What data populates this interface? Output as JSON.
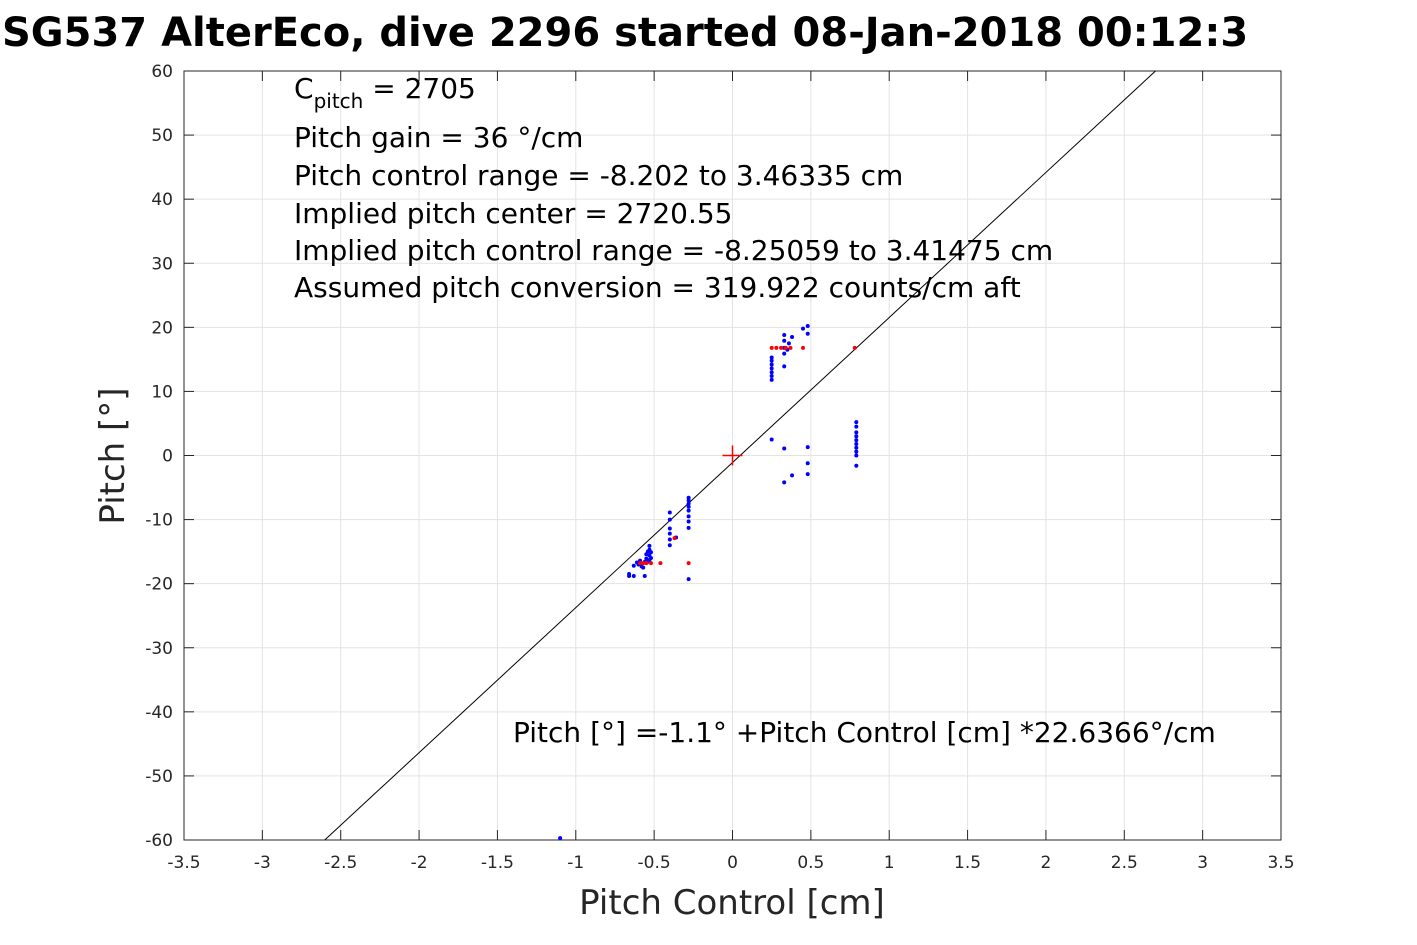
{
  "chart_data": {
    "type": "scatter",
    "title": "SG537 AlterEco, dive 2296 started 08-Jan-2018 00:12:3",
    "xlabel": "Pitch Control [cm]",
    "ylabel": "Pitch [°]",
    "xlim": [
      -3.5,
      3.5
    ],
    "ylim": [
      -60,
      60
    ],
    "xticks": [
      "-3.5",
      "-3",
      "-2.5",
      "-2",
      "-1.5",
      "-1",
      "-0.5",
      "0",
      "0.5",
      "1",
      "1.5",
      "2",
      "2.5",
      "3",
      "3.5"
    ],
    "yticks": [
      "60",
      "50",
      "40",
      "30",
      "20",
      "10",
      "0",
      "-10",
      "-20",
      "-30",
      "-40",
      "-50",
      "-60"
    ],
    "grid": true,
    "annotations": {
      "c_pitch_base": "C",
      "c_pitch_sub": "pitch",
      "c_pitch_value": " = 2705",
      "pitch_gain": "Pitch gain = 36 °/cm",
      "pitch_control_range": "Pitch control range = -8.202 to 3.46335 cm",
      "implied_center": "Implied pitch center = 2720.55",
      "implied_range": "Implied pitch control range = -8.25059 to 3.41475 cm",
      "assumed_conversion": "Assumed pitch conversion = 319.922 counts/cm aft",
      "fit_equation": "Pitch [°] =-1.1° +Pitch Control [cm] *22.6366°/cm"
    },
    "fit_line": {
      "intercept": -1.1,
      "slope": 22.6366,
      "color": "#000000"
    },
    "center_marker": {
      "x": 0,
      "y": 0,
      "color": "#ff0000"
    },
    "series": [
      {
        "color": "#0000ff",
        "points": [
          [
            -0.66,
            -18.5
          ],
          [
            -0.66,
            -18.8
          ],
          [
            -0.63,
            -17.2
          ],
          [
            -0.63,
            -18.8
          ],
          [
            -0.61,
            -16.7
          ],
          [
            -0.6,
            -17.0
          ],
          [
            -0.59,
            -16.4
          ],
          [
            -0.58,
            -17.3
          ],
          [
            -0.57,
            -17.5
          ],
          [
            -0.56,
            -16.6
          ],
          [
            -0.56,
            -18.8
          ],
          [
            -0.55,
            -15.4
          ],
          [
            -0.55,
            -16.1
          ],
          [
            -0.54,
            -15.0
          ],
          [
            -0.54,
            -16.6
          ],
          [
            -0.53,
            -14.1
          ],
          [
            -0.53,
            -14.7
          ],
          [
            -0.53,
            -15.6
          ],
          [
            -0.53,
            -16.3
          ],
          [
            -0.52,
            -15.1
          ],
          [
            -0.52,
            -16.0
          ],
          [
            -0.4,
            -8.9
          ],
          [
            -0.4,
            -10.0
          ],
          [
            -0.4,
            -11.4
          ],
          [
            -0.4,
            -12.2
          ],
          [
            -0.4,
            -13.1
          ],
          [
            -0.4,
            -14.0
          ],
          [
            -0.36,
            -12.8
          ],
          [
            -0.28,
            -6.6
          ],
          [
            -0.28,
            -7.0
          ],
          [
            -0.28,
            -7.5
          ],
          [
            -0.28,
            -8.0
          ],
          [
            -0.28,
            -8.6
          ],
          [
            -0.28,
            -9.5
          ],
          [
            -0.28,
            -10.3
          ],
          [
            -0.28,
            -11.3
          ],
          [
            -0.28,
            -19.3
          ],
          [
            0.25,
            11.8
          ],
          [
            0.25,
            12.4
          ],
          [
            0.25,
            13.0
          ],
          [
            0.25,
            13.6
          ],
          [
            0.25,
            14.2
          ],
          [
            0.25,
            14.8
          ],
          [
            0.25,
            15.3
          ],
          [
            0.25,
            2.5
          ],
          [
            0.33,
            13.9
          ],
          [
            0.33,
            15.9
          ],
          [
            0.33,
            16.8
          ],
          [
            0.33,
            17.9
          ],
          [
            0.33,
            18.8
          ],
          [
            0.33,
            1.1
          ],
          [
            0.33,
            -4.2
          ],
          [
            0.35,
            16.5
          ],
          [
            0.36,
            17.5
          ],
          [
            0.38,
            18.5
          ],
          [
            0.38,
            -3.1
          ],
          [
            0.45,
            19.8
          ],
          [
            0.48,
            20.2
          ],
          [
            0.48,
            19.0
          ],
          [
            0.48,
            1.3
          ],
          [
            0.48,
            -1.2
          ],
          [
            0.48,
            -2.9
          ],
          [
            0.79,
            5.2
          ],
          [
            0.79,
            4.5
          ],
          [
            0.79,
            3.6
          ],
          [
            0.79,
            3.0
          ],
          [
            0.79,
            2.4
          ],
          [
            0.79,
            1.8
          ],
          [
            0.79,
            1.2
          ],
          [
            0.79,
            0.6
          ],
          [
            0.79,
            0.0
          ],
          [
            0.79,
            -1.6
          ],
          [
            -1.1,
            -59.7
          ]
        ]
      },
      {
        "color": "#ff0000",
        "points": [
          [
            -0.59,
            -16.8
          ],
          [
            -0.57,
            -16.8
          ],
          [
            -0.55,
            -16.8
          ],
          [
            -0.52,
            -16.8
          ],
          [
            -0.46,
            -16.8
          ],
          [
            -0.37,
            -12.9
          ],
          [
            -0.28,
            -16.8
          ],
          [
            0.25,
            16.8
          ],
          [
            0.28,
            16.8
          ],
          [
            0.31,
            16.8
          ],
          [
            0.34,
            16.8
          ],
          [
            0.37,
            16.8
          ],
          [
            0.45,
            16.8
          ],
          [
            0.78,
            16.8
          ]
        ]
      }
    ]
  }
}
